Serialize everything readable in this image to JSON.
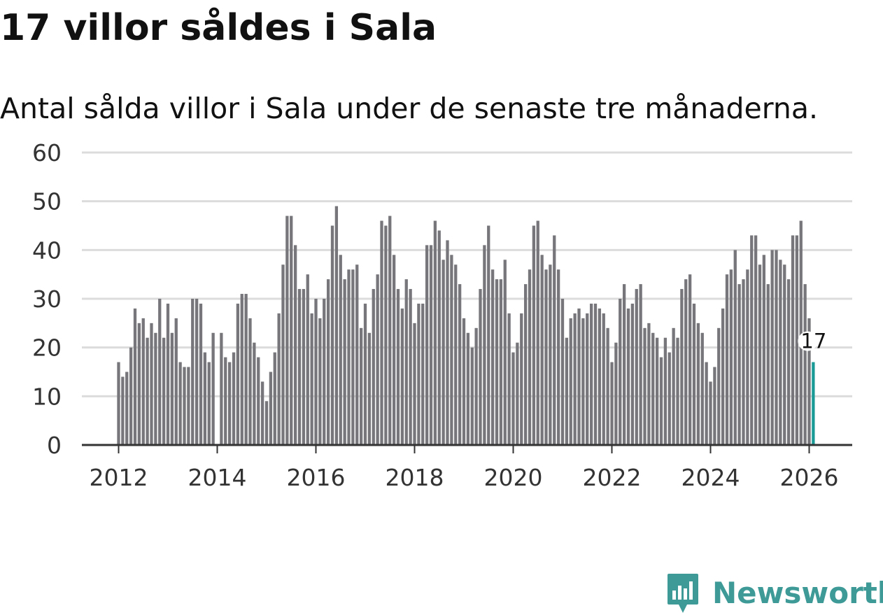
{
  "title": "17 villor såldes i Sala",
  "subtitle": "Antal sålda villor i Sala under de senaste tre månaderna.",
  "logo": {
    "text": "Newsworthy",
    "icon": "newsworthy-logo-icon"
  },
  "colors": {
    "bar": "#77767b",
    "highlight": "#1a9a96",
    "grid": "#dcdcdc",
    "axis": "#333333",
    "brand": "#3d9a97"
  },
  "chart_data": {
    "type": "bar",
    "title": "17 villor såldes i Sala",
    "subtitle": "Antal sålda villor i Sala under de senaste tre månaderna.",
    "xlabel": "",
    "ylabel": "",
    "ylim": [
      0,
      60
    ],
    "yticks": [
      0,
      10,
      20,
      30,
      40,
      50,
      60
    ],
    "ytick_labels": [
      "0",
      "10",
      "20",
      "30",
      "40",
      "50",
      "60"
    ],
    "xticks": [
      "2012",
      "2014",
      "2016",
      "2018",
      "2020",
      "2022",
      "2024",
      "2026"
    ],
    "grid": true,
    "start": "2012-01",
    "frequency": "monthly (rolling three-month total)",
    "values": [
      17,
      14,
      15,
      20,
      28,
      25,
      26,
      22,
      25,
      23,
      30,
      22,
      29,
      23,
      26,
      17,
      16,
      16,
      30,
      30,
      29,
      19,
      17,
      23,
      0,
      23,
      18,
      17,
      19,
      29,
      31,
      31,
      26,
      21,
      18,
      13,
      9,
      15,
      19,
      27,
      37,
      47,
      47,
      41,
      32,
      32,
      35,
      27,
      30,
      26,
      30,
      34,
      45,
      49,
      39,
      34,
      36,
      36,
      37,
      24,
      29,
      23,
      32,
      35,
      46,
      45,
      47,
      39,
      32,
      28,
      34,
      32,
      25,
      29,
      29,
      41,
      41,
      46,
      44,
      38,
      42,
      39,
      37,
      33,
      26,
      23,
      20,
      24,
      32,
      41,
      45,
      36,
      34,
      34,
      38,
      27,
      19,
      21,
      27,
      33,
      36,
      45,
      46,
      39,
      36,
      37,
      43,
      36,
      30,
      22,
      26,
      27,
      28,
      26,
      27,
      29,
      29,
      28,
      27,
      24,
      17,
      21,
      30,
      33,
      28,
      29,
      32,
      33,
      24,
      25,
      23,
      22,
      18,
      22,
      19,
      24,
      22,
      32,
      34,
      35,
      29,
      25,
      23,
      17,
      13,
      16,
      24,
      28,
      35,
      36,
      40,
      33,
      34,
      36,
      43,
      43,
      37,
      39,
      33,
      40,
      40,
      38,
      37,
      34,
      43,
      43,
      46,
      33,
      26,
      17
    ],
    "highlight_last": true,
    "annotation": {
      "label": "17",
      "value": 17
    }
  }
}
